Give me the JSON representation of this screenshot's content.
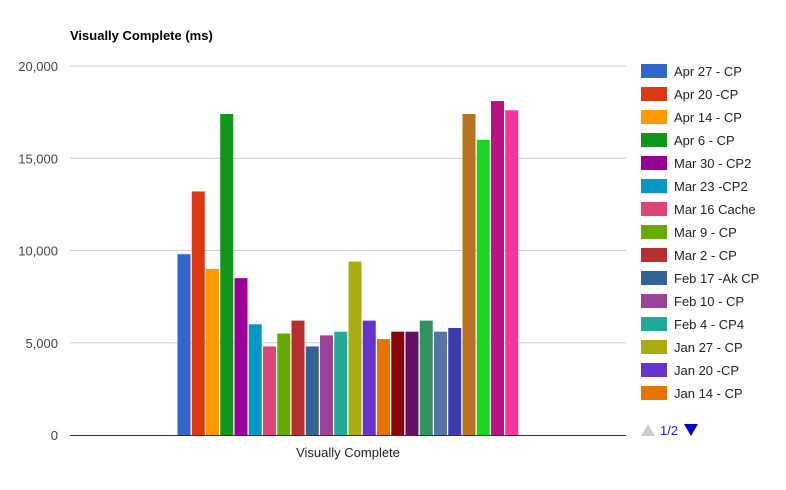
{
  "chart_data": {
    "type": "bar",
    "title": "Visually Complete (ms)",
    "categories": [
      "Visually Complete"
    ],
    "ylim": [
      0,
      20000
    ],
    "yticks": [
      0,
      5000,
      10000,
      15000,
      20000
    ],
    "ytick_labels": [
      "0",
      "5,000",
      "10,000",
      "15,000",
      "20,000"
    ],
    "grid": true,
    "legend_position": "right",
    "series": [
      {
        "name": "Apr 27 - CP",
        "values": [
          9800
        ],
        "color": "#3366cc"
      },
      {
        "name": "Apr 20 -CP",
        "values": [
          13200
        ],
        "color": "#dc3912"
      },
      {
        "name": "Apr 14 - CP",
        "values": [
          9000
        ],
        "color": "#ff9900"
      },
      {
        "name": "Apr 6 - CP",
        "values": [
          17400
        ],
        "color": "#109618"
      },
      {
        "name": "Mar 30 - CP2",
        "values": [
          8500
        ],
        "color": "#990099"
      },
      {
        "name": "Mar 23 -CP2",
        "values": [
          6000
        ],
        "color": "#0099c6"
      },
      {
        "name": "Mar 16 Cache",
        "values": [
          4800
        ],
        "color": "#dd4477"
      },
      {
        "name": "Mar 9 - CP",
        "values": [
          5500
        ],
        "color": "#66aa00"
      },
      {
        "name": "Mar 2 - CP",
        "values": [
          6200
        ],
        "color": "#b82e2e"
      },
      {
        "name": "Feb 17 -Ak CP",
        "values": [
          4800
        ],
        "color": "#316395"
      },
      {
        "name": "Feb 10 - CP",
        "values": [
          5400
        ],
        "color": "#994499"
      },
      {
        "name": "Feb 4 - CP4",
        "values": [
          5600
        ],
        "color": "#22aa99"
      },
      {
        "name": "Jan 27 - CP",
        "values": [
          9400
        ],
        "color": "#aaaa11"
      },
      {
        "name": "Jan 20 -CP",
        "values": [
          6200
        ],
        "color": "#6633cc"
      },
      {
        "name": "Jan 14 - CP",
        "values": [
          5200
        ],
        "color": "#e67300"
      },
      {
        "name": "",
        "values": [
          5600
        ],
        "color": "#8b0707"
      },
      {
        "name": "",
        "values": [
          5600
        ],
        "color": "#651067"
      },
      {
        "name": "",
        "values": [
          6200
        ],
        "color": "#329262"
      },
      {
        "name": "",
        "values": [
          5600
        ],
        "color": "#5574a6"
      },
      {
        "name": "",
        "values": [
          5800
        ],
        "color": "#3b3eac"
      },
      {
        "name": "",
        "values": [
          17400
        ],
        "color": "#b77322"
      },
      {
        "name": "",
        "values": [
          16000
        ],
        "color": "#16d620"
      },
      {
        "name": "",
        "values": [
          18100
        ],
        "color": "#b91383"
      },
      {
        "name": "",
        "values": [
          17600
        ],
        "color": "#f4359e"
      }
    ]
  },
  "legend_pager": {
    "label": "1/2",
    "prev_icon": "triangle-up-icon",
    "next_icon": "triangle-down-icon",
    "prev_color": "#cccccc",
    "next_color": "#0000cc"
  }
}
